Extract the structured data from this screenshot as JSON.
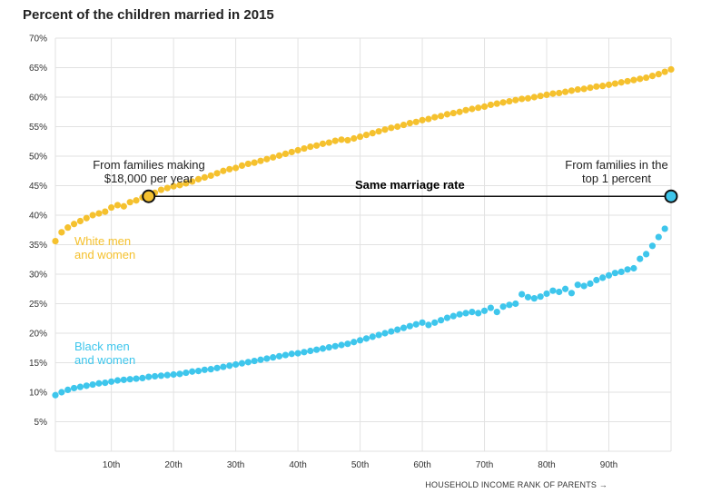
{
  "chart_data": {
    "type": "scatter",
    "title": "Percent of the children married in 2015",
    "xlabel": "HOUSEHOLD INCOME RANK OF PARENTS →",
    "ylabel": "",
    "xlim": [
      1,
      100
    ],
    "ylim": [
      0,
      70
    ],
    "x_ticks": [
      10,
      20,
      30,
      40,
      50,
      60,
      70,
      80,
      90
    ],
    "x_tick_labels": [
      "10th",
      "20th",
      "30th",
      "40th",
      "50th",
      "60th",
      "70th",
      "80th",
      "90th"
    ],
    "y_ticks": [
      5,
      10,
      15,
      20,
      25,
      30,
      35,
      40,
      45,
      50,
      55,
      60,
      65,
      70
    ],
    "y_tick_labels": [
      "5%",
      "10%",
      "15%",
      "20%",
      "25%",
      "30%",
      "35%",
      "40%",
      "45%",
      "50%",
      "55%",
      "60%",
      "65%",
      "70%"
    ],
    "grid": true,
    "series": [
      {
        "name": "White men and women",
        "label_lines": [
          "White men",
          "and women"
        ],
        "color": "#f5c12e",
        "values": [
          35.6,
          37.1,
          37.9,
          38.5,
          39.0,
          39.5,
          40.0,
          40.3,
          40.6,
          41.3,
          41.7,
          41.5,
          42.2,
          42.5,
          43.0,
          43.3,
          43.8,
          44.3,
          44.6,
          44.9,
          45.1,
          45.4,
          45.7,
          46.1,
          46.4,
          46.7,
          47.1,
          47.5,
          47.8,
          48.0,
          48.4,
          48.7,
          48.9,
          49.2,
          49.5,
          49.8,
          50.1,
          50.4,
          50.7,
          51.0,
          51.3,
          51.6,
          51.8,
          52.1,
          52.3,
          52.6,
          52.8,
          52.7,
          53.0,
          53.3,
          53.6,
          53.9,
          54.2,
          54.5,
          54.8,
          55.0,
          55.3,
          55.6,
          55.8,
          56.1,
          56.3,
          56.6,
          56.8,
          57.1,
          57.3,
          57.5,
          57.8,
          58.0,
          58.2,
          58.4,
          58.7,
          58.9,
          59.1,
          59.3,
          59.5,
          59.7,
          59.8,
          60.0,
          60.2,
          60.4,
          60.6,
          60.7,
          60.9,
          61.1,
          61.3,
          61.4,
          61.6,
          61.8,
          61.9,
          62.1,
          62.3,
          62.5,
          62.7,
          62.9,
          63.1,
          63.3,
          63.6,
          63.9,
          64.3,
          64.7
        ]
      },
      {
        "name": "Black men and women",
        "label_lines": [
          "Black men",
          "and women"
        ],
        "color": "#3ec6ec",
        "values": [
          9.5,
          10.0,
          10.4,
          10.7,
          10.9,
          11.1,
          11.3,
          11.5,
          11.6,
          11.8,
          12.0,
          12.1,
          12.2,
          12.3,
          12.4,
          12.6,
          12.7,
          12.8,
          12.9,
          13.0,
          13.1,
          13.3,
          13.5,
          13.6,
          13.8,
          13.9,
          14.1,
          14.3,
          14.5,
          14.7,
          14.9,
          15.1,
          15.3,
          15.5,
          15.7,
          15.9,
          16.1,
          16.3,
          16.5,
          16.6,
          16.8,
          17.0,
          17.2,
          17.4,
          17.6,
          17.8,
          18.0,
          18.2,
          18.5,
          18.8,
          19.1,
          19.4,
          19.7,
          20.0,
          20.3,
          20.6,
          20.9,
          21.2,
          21.5,
          21.8,
          21.4,
          21.8,
          22.2,
          22.6,
          22.9,
          23.2,
          23.4,
          23.6,
          23.4,
          23.8,
          24.3,
          23.6,
          24.5,
          24.8,
          25.0,
          26.6,
          26.1,
          25.9,
          26.2,
          26.7,
          27.2,
          27.0,
          27.5,
          26.8,
          28.2,
          28.0,
          28.4,
          29.0,
          29.4,
          29.8,
          30.2,
          30.4,
          30.8,
          31.0,
          32.6,
          33.4,
          34.8,
          36.3,
          37.7,
          43.2
        ]
      }
    ],
    "annotations": {
      "left_callout": [
        "From families making",
        "$18,000 per year"
      ],
      "right_callout": [
        "From families in the",
        "top 1 percent"
      ],
      "connector_label": "Same marriage rate",
      "connector_value": 43.2,
      "connector_x": [
        16,
        100
      ]
    }
  }
}
